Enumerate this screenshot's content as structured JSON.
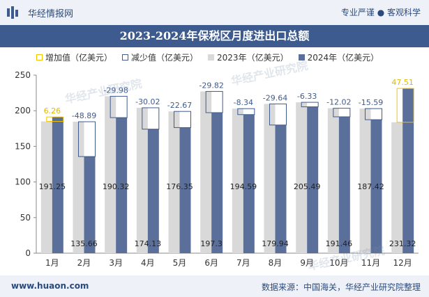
{
  "header": {
    "brand": "华经情报网",
    "tagline": "专业严谨 ● 客观科学"
  },
  "watermarks": [
    "华经产业研究院",
    "华经产业研究院",
    "华经产业研究院"
  ],
  "footer": {
    "website": "www.huaon.com",
    "source": "数据来源：中国海关，华经产业研究院整理"
  },
  "colors": {
    "bar2023": "#d9d9d9",
    "bar2024": "#5b6f9b",
    "increase": "#f5c400",
    "decrease": "#3d5b8f",
    "label_increase": "#e3b800",
    "label_decrease": "#3d5b8f",
    "title_bg": "#3d5b8f"
  },
  "chart_data": {
    "type": "bar",
    "title": "2023-2024年保税区月度进出口总额",
    "categories": [
      "1月",
      "2月",
      "3月",
      "4月",
      "5月",
      "6月",
      "7月",
      "8月",
      "9月",
      "10月",
      "11月",
      "12月"
    ],
    "series": [
      {
        "name": "2023年（亿美元）",
        "values": [
          185.0,
          184.55,
          220.3,
          204.15,
          199.02,
          227.12,
          202.93,
          209.58,
          211.82,
          203.48,
          203.01,
          183.81
        ]
      },
      {
        "name": "2024年（亿美元）",
        "values": [
          191.25,
          135.66,
          190.32,
          174.13,
          176.35,
          197.3,
          194.59,
          179.94,
          205.49,
          191.46,
          187.42,
          231.32
        ]
      }
    ],
    "changes": [
      {
        "name": "增加值（亿美元）",
        "values": [
          6.26,
          null,
          null,
          null,
          null,
          null,
          null,
          null,
          null,
          null,
          null,
          47.51
        ]
      },
      {
        "name": "减少值（亿美元）",
        "values": [
          null,
          -48.89,
          -29.98,
          -30.02,
          -22.67,
          -29.82,
          -8.34,
          -29.64,
          -6.33,
          -12.02,
          -15.59,
          null
        ]
      }
    ],
    "change_labels": [
      "6.26",
      "-48.89",
      "-29.98",
      "-30.02",
      "-22.67",
      "-29.82",
      "-8.34",
      "-29.64",
      "-6.33",
      "-12.02",
      "-15.59",
      "47.51"
    ],
    "value_labels_2024": [
      "191.25",
      "135.66",
      "190.32",
      "174.13",
      "176.35",
      "197.3",
      "194.59",
      "179.94",
      "205.49",
      "191.46",
      "187.42",
      "231.32"
    ],
    "yticks": [
      "0",
      "50",
      "100",
      "150",
      "200",
      "250"
    ],
    "ylim": [
      0,
      250
    ],
    "legend_position": "top",
    "grid": false
  }
}
